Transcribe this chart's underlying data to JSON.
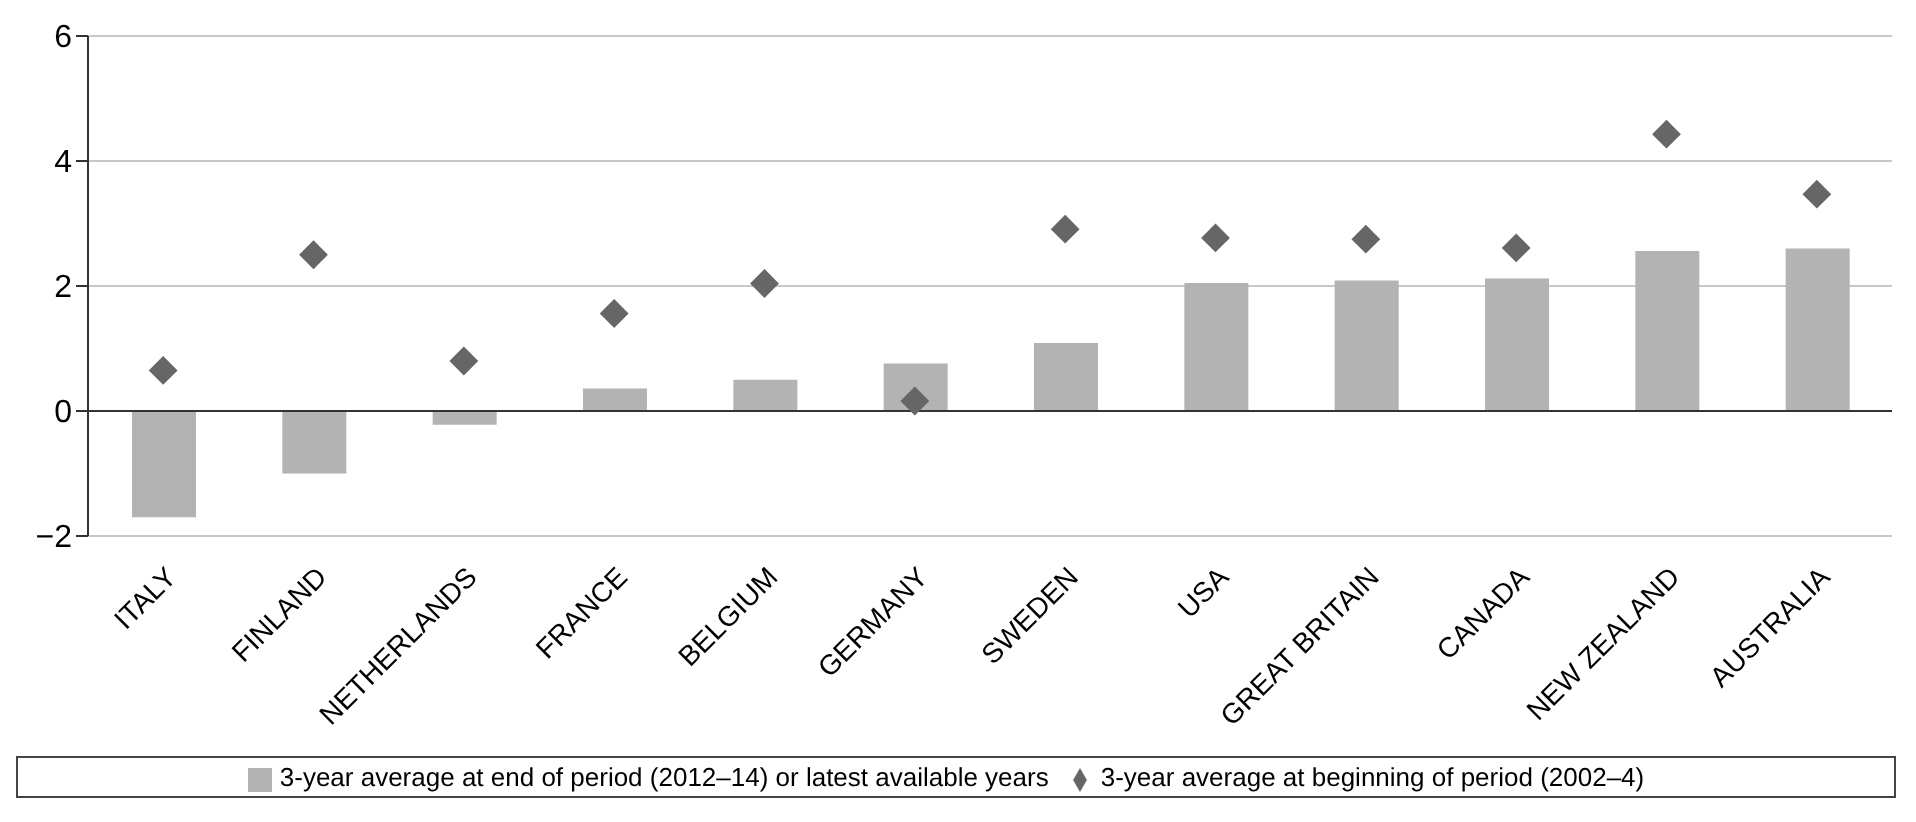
{
  "chart_data": {
    "type": "bar",
    "categories": [
      "ITALY",
      "FINLAND",
      "NETHERLANDS",
      "FRANCE",
      "BELGIUM",
      "GERMANY",
      "SWEDEN",
      "USA",
      "GREAT BRITAIN",
      "CANADA",
      "NEW ZEALAND",
      "AUSTRALIA"
    ],
    "series": [
      {
        "name": "3-year average at end of period (2012–14) or latest available years",
        "color": "#b3b3b3",
        "values": [
          -1.7,
          -1.0,
          -0.22,
          0.36,
          0.5,
          0.76,
          1.09,
          2.05,
          2.09,
          2.12,
          2.56,
          2.6
        ]
      },
      {
        "name": "3-year average at beginning of period (2002–4)",
        "type": "scatter",
        "marker": "diamond",
        "color": "#666666",
        "values": [
          0.65,
          2.5,
          0.8,
          1.56,
          2.04,
          0.16,
          2.91,
          2.77,
          2.75,
          2.61,
          4.43,
          3.47
        ]
      }
    ],
    "ylim": [
      -2,
      6
    ],
    "yticks": [
      {
        "value": -2,
        "label": "−2"
      },
      0,
      2,
      4,
      6
    ],
    "grid": "y",
    "legend": "bottom"
  }
}
